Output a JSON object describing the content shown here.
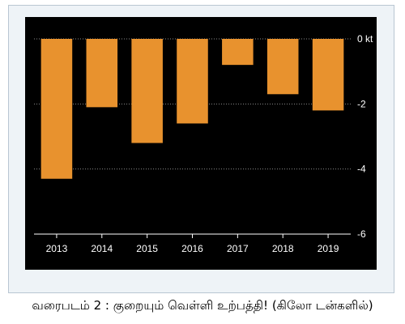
{
  "caption": "வரைபடம் 2 : குறையும் வெள்ளி உற்பத்தி! (கிலோ டன்களில்)",
  "colors": {
    "bar": "#e8922e",
    "panel": "#000000",
    "grid": "#8a8a8a",
    "axis": "#ffffff",
    "tick_text": "#ffffff"
  },
  "chart_data": {
    "type": "bar",
    "categories": [
      "2013",
      "2014",
      "2015",
      "2016",
      "2017",
      "2018",
      "2019"
    ],
    "values": [
      -4.3,
      -2.1,
      -3.2,
      -2.6,
      -0.8,
      -1.7,
      -2.2
    ],
    "ylim": [
      -6,
      0
    ],
    "yticks": [
      0,
      -2,
      -4,
      -6
    ],
    "ytick_labels": [
      "0 kt",
      "-2",
      "-4",
      "-6"
    ],
    "y_axis_position": "right",
    "grid": true,
    "grid_style": "dotted"
  }
}
